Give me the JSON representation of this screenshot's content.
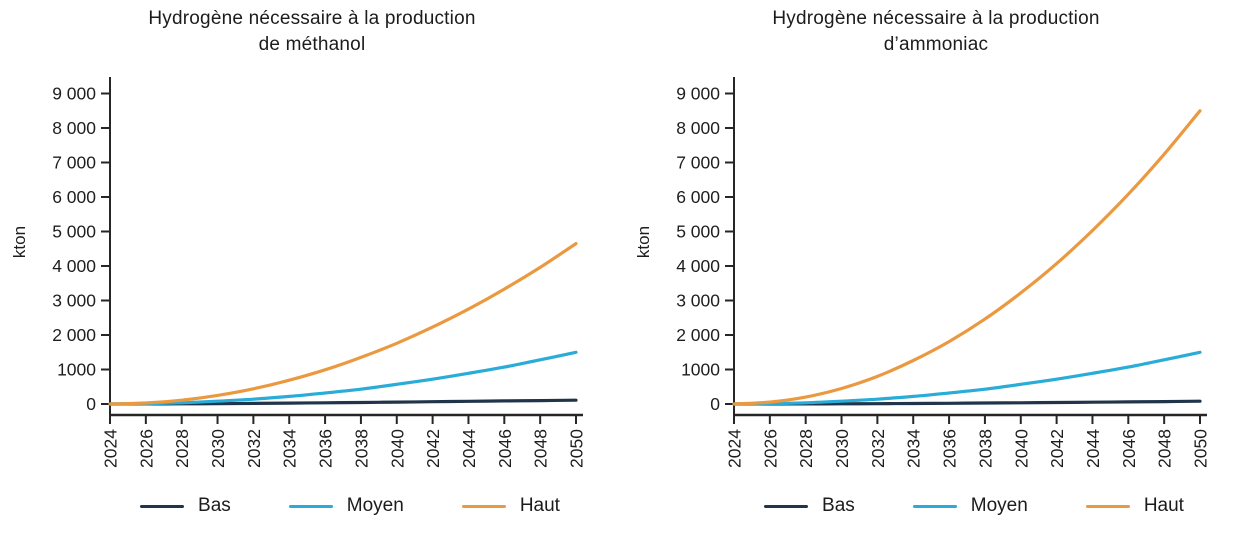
{
  "page": {
    "background": "#ffffff"
  },
  "chart_data": [
    {
      "type": "line",
      "title": "Hydrogène nécessaire à la production de méthanol",
      "title_lines": [
        "Hydrogène nécessaire à la production",
        "de méthanol"
      ],
      "ylabel": "kton",
      "xlabel": "",
      "ylim": [
        0,
        9000
      ],
      "grid": false,
      "legend_position": "bottom",
      "y_ticks": [
        0,
        1000,
        2000,
        3000,
        4000,
        5000,
        6000,
        7000,
        8000,
        9000
      ],
      "y_tick_labels": [
        "0",
        "1000",
        "2 000",
        "3 000",
        "4 000",
        "5 000",
        "6 000",
        "7 000",
        "8 000",
        "9 000"
      ],
      "x": [
        2024,
        2026,
        2028,
        2030,
        2032,
        2034,
        2036,
        2038,
        2040,
        2042,
        2044,
        2046,
        2048,
        2050
      ],
      "x_tick_labels": [
        "2024",
        "2026",
        "2028",
        "2030",
        "2032",
        "2034",
        "2036",
        "2038",
        "2040",
        "2042",
        "2044",
        "2046",
        "2048",
        "2050"
      ],
      "series": [
        {
          "name": "Bas",
          "color": "#20354a",
          "values": [
            0,
            2,
            5,
            10,
            17,
            25,
            34,
            44,
            55,
            66,
            78,
            90,
            100,
            110
          ]
        },
        {
          "name": "Moyen",
          "color": "#2aacd9",
          "values": [
            0,
            10,
            35,
            80,
            140,
            220,
            320,
            430,
            570,
            720,
            890,
            1070,
            1280,
            1500
          ]
        },
        {
          "name": "Haut",
          "color": "#eb9940",
          "values": [
            0,
            30,
            110,
            250,
            440,
            690,
            990,
            1350,
            1760,
            2230,
            2750,
            3330,
            3960,
            4650
          ]
        }
      ]
    },
    {
      "type": "line",
      "title": "Hydrogène nécessaire à la production d’ammoniac",
      "title_lines": [
        "Hydrogène nécessaire à la production",
        "d’ammoniac"
      ],
      "ylabel": "kton",
      "xlabel": "",
      "ylim": [
        0,
        9000
      ],
      "grid": false,
      "legend_position": "bottom",
      "y_ticks": [
        0,
        1000,
        2000,
        3000,
        4000,
        5000,
        6000,
        7000,
        8000,
        9000
      ],
      "y_tick_labels": [
        "0",
        "1000",
        "2 000",
        "3 000",
        "4 000",
        "5 000",
        "6 000",
        "7 000",
        "8 000",
        "9 000"
      ],
      "x": [
        2024,
        2026,
        2028,
        2030,
        2032,
        2034,
        2036,
        2038,
        2040,
        2042,
        2044,
        2046,
        2048,
        2050
      ],
      "x_tick_labels": [
        "2024",
        "2026",
        "2028",
        "2030",
        "2032",
        "2034",
        "2036",
        "2038",
        "2040",
        "2042",
        "2044",
        "2046",
        "2048",
        "2050"
      ],
      "series": [
        {
          "name": "Bas",
          "color": "#20354a",
          "values": [
            0,
            1,
            3,
            6,
            10,
            15,
            21,
            28,
            36,
            44,
            53,
            62,
            71,
            80
          ]
        },
        {
          "name": "Moyen",
          "color": "#2aacd9",
          "values": [
            0,
            10,
            35,
            80,
            140,
            220,
            320,
            430,
            570,
            720,
            890,
            1070,
            1280,
            1500
          ]
        },
        {
          "name": "Haut",
          "color": "#eb9940",
          "values": [
            0,
            55,
            200,
            450,
            800,
            1260,
            1810,
            2460,
            3220,
            4070,
            5030,
            6080,
            7240,
            8500
          ]
        }
      ]
    }
  ],
  "axis": {
    "color": "#262626"
  }
}
